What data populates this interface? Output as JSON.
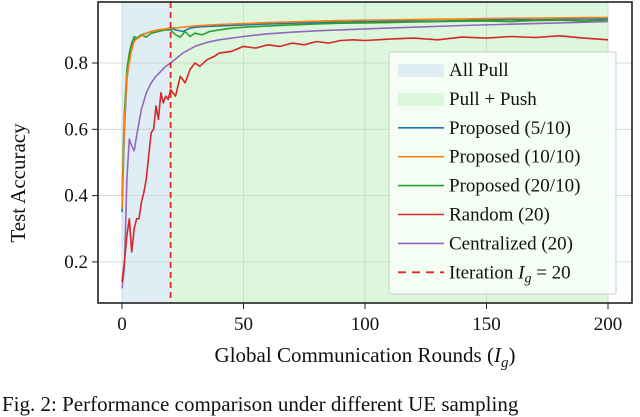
{
  "chart_data": {
    "type": "line",
    "title": "",
    "xlabel": "Global Communication Rounds (I_g)",
    "ylabel": "Test Accuracy",
    "xlim": [
      -10,
      210
    ],
    "ylim": [
      0.076,
      0.984
    ],
    "xticks": [
      0,
      50,
      100,
      150,
      200
    ],
    "xtick_labels": [
      "0",
      "50",
      "100",
      "150",
      "200"
    ],
    "yticks": [
      0.2,
      0.4,
      0.6,
      0.8
    ],
    "ytick_labels": [
      "0.2",
      "0.4",
      "0.6",
      "0.8"
    ],
    "grid": true,
    "legend_position": "lower right",
    "shaded_regions": [
      {
        "name": "All Pull",
        "x_start": 0,
        "x_end": 20,
        "color": "#dfeef5"
      },
      {
        "name": "Pull + Push",
        "x_start": 20,
        "x_end": 200,
        "color": "#dcf7dc"
      }
    ],
    "vlines": [
      {
        "name": "Iteration I_g = 20",
        "x": 20,
        "color": "#ee2222",
        "style": "dashed"
      }
    ],
    "series": [
      {
        "name": "Proposed (5/10)",
        "color": "#1f77b4",
        "x": [
          0,
          1,
          2,
          3,
          4,
          5,
          6,
          8,
          10,
          12,
          15,
          18,
          20,
          22,
          25,
          28,
          30,
          35,
          40,
          50,
          60,
          70,
          80,
          90,
          100,
          110,
          120,
          130,
          140,
          150,
          160,
          170,
          180,
          190,
          200
        ],
        "y": [
          0.35,
          0.6,
          0.75,
          0.81,
          0.85,
          0.87,
          0.875,
          0.885,
          0.89,
          0.895,
          0.9,
          0.902,
          0.905,
          0.9,
          0.895,
          0.905,
          0.908,
          0.91,
          0.912,
          0.915,
          0.918,
          0.92,
          0.922,
          0.923,
          0.925,
          0.926,
          0.927,
          0.926,
          0.928,
          0.93,
          0.931,
          0.93,
          0.932,
          0.933,
          0.933
        ]
      },
      {
        "name": "Proposed (10/10)",
        "color": "#ff7f0e",
        "x": [
          0,
          1,
          2,
          3,
          4,
          5,
          6,
          8,
          10,
          12,
          15,
          18,
          20,
          22,
          25,
          28,
          30,
          35,
          40,
          50,
          60,
          70,
          80,
          90,
          100,
          110,
          120,
          130,
          140,
          150,
          160,
          170,
          180,
          190,
          200
        ],
        "y": [
          0.36,
          0.62,
          0.76,
          0.8,
          0.84,
          0.865,
          0.872,
          0.882,
          0.89,
          0.895,
          0.9,
          0.903,
          0.906,
          0.906,
          0.908,
          0.91,
          0.912,
          0.914,
          0.916,
          0.919,
          0.922,
          0.924,
          0.926,
          0.928,
          0.929,
          0.93,
          0.931,
          0.932,
          0.933,
          0.934,
          0.935,
          0.935,
          0.936,
          0.937,
          0.937
        ]
      },
      {
        "name": "Proposed (20/10)",
        "color": "#2ca02c",
        "x": [
          0,
          1,
          2,
          3,
          4,
          5,
          6,
          8,
          10,
          12,
          15,
          18,
          20,
          22,
          24,
          26,
          28,
          30,
          33,
          36,
          40,
          45,
          50,
          60,
          70,
          80,
          90,
          100,
          110,
          120,
          130,
          140,
          150,
          160,
          170,
          180,
          190,
          200
        ],
        "y": [
          0.4,
          0.65,
          0.78,
          0.83,
          0.86,
          0.88,
          0.875,
          0.885,
          0.878,
          0.89,
          0.895,
          0.9,
          0.9,
          0.885,
          0.878,
          0.895,
          0.88,
          0.89,
          0.885,
          0.895,
          0.9,
          0.905,
          0.908,
          0.912,
          0.915,
          0.918,
          0.92,
          0.921,
          0.922,
          0.924,
          0.925,
          0.926,
          0.927,
          0.925,
          0.928,
          0.929,
          0.927,
          0.93
        ]
      },
      {
        "name": "Random (20)",
        "color": "#d62728",
        "x": [
          0,
          1,
          2,
          3,
          4,
          5,
          6,
          7,
          8,
          9,
          10,
          11,
          12,
          13,
          14,
          15,
          16,
          17,
          18,
          19,
          20,
          22,
          24,
          26,
          28,
          30,
          32,
          35,
          38,
          40,
          45,
          50,
          55,
          60,
          65,
          70,
          75,
          80,
          85,
          90,
          95,
          100,
          110,
          120,
          130,
          140,
          150,
          160,
          170,
          180,
          190,
          200
        ],
        "y": [
          0.14,
          0.2,
          0.28,
          0.33,
          0.23,
          0.3,
          0.33,
          0.33,
          0.38,
          0.41,
          0.45,
          0.52,
          0.59,
          0.6,
          0.67,
          0.63,
          0.71,
          0.68,
          0.7,
          0.69,
          0.72,
          0.7,
          0.76,
          0.74,
          0.78,
          0.8,
          0.79,
          0.81,
          0.82,
          0.83,
          0.835,
          0.85,
          0.845,
          0.855,
          0.85,
          0.86,
          0.855,
          0.865,
          0.86,
          0.868,
          0.87,
          0.868,
          0.872,
          0.875,
          0.87,
          0.878,
          0.875,
          0.88,
          0.877,
          0.882,
          0.875,
          0.87
        ]
      },
      {
        "name": "Centralized (20)",
        "color": "#9467bd",
        "x": [
          0,
          1,
          2,
          3,
          4,
          5,
          6,
          8,
          10,
          12,
          14,
          16,
          18,
          20,
          25,
          30,
          35,
          40,
          50,
          60,
          70,
          80,
          100,
          120,
          140,
          160,
          180,
          200
        ],
        "y": [
          0.12,
          0.18,
          0.45,
          0.57,
          0.55,
          0.535,
          0.58,
          0.66,
          0.71,
          0.74,
          0.76,
          0.775,
          0.79,
          0.8,
          0.83,
          0.85,
          0.862,
          0.87,
          0.88,
          0.888,
          0.893,
          0.897,
          0.903,
          0.908,
          0.913,
          0.917,
          0.921,
          0.925
        ]
      }
    ]
  },
  "legend": {
    "items": [
      {
        "label": "All Pull",
        "kind": "patch",
        "color": "#dfeef5"
      },
      {
        "label": "Pull + Push",
        "kind": "patch",
        "color": "#dcf7dc"
      },
      {
        "label": "Proposed (5/10)",
        "kind": "line",
        "color": "#1f77b4"
      },
      {
        "label": "Proposed (10/10)",
        "kind": "line",
        "color": "#ff7f0e"
      },
      {
        "label": "Proposed (20/10)",
        "kind": "line",
        "color": "#2ca02c"
      },
      {
        "label": "Random (20)",
        "kind": "line",
        "color": "#d62728"
      },
      {
        "label": "Centralized (20)",
        "kind": "line",
        "color": "#9467bd"
      },
      {
        "label": "Iteration I_g = 20",
        "kind": "dashed",
        "color": "#ee2222"
      }
    ]
  },
  "axes": {
    "xlabel_main": "Global Communication Rounds (",
    "xlabel_var": "I",
    "xlabel_sub": "g",
    "xlabel_close": ")",
    "ylabel": "Test Accuracy",
    "legend_last_prefix": "Iteration ",
    "legend_last_var": "I",
    "legend_last_sub": "g",
    "legend_last_suffix": " = 20"
  },
  "caption": "Fig. 2: Performance comparison under different UE sampling"
}
